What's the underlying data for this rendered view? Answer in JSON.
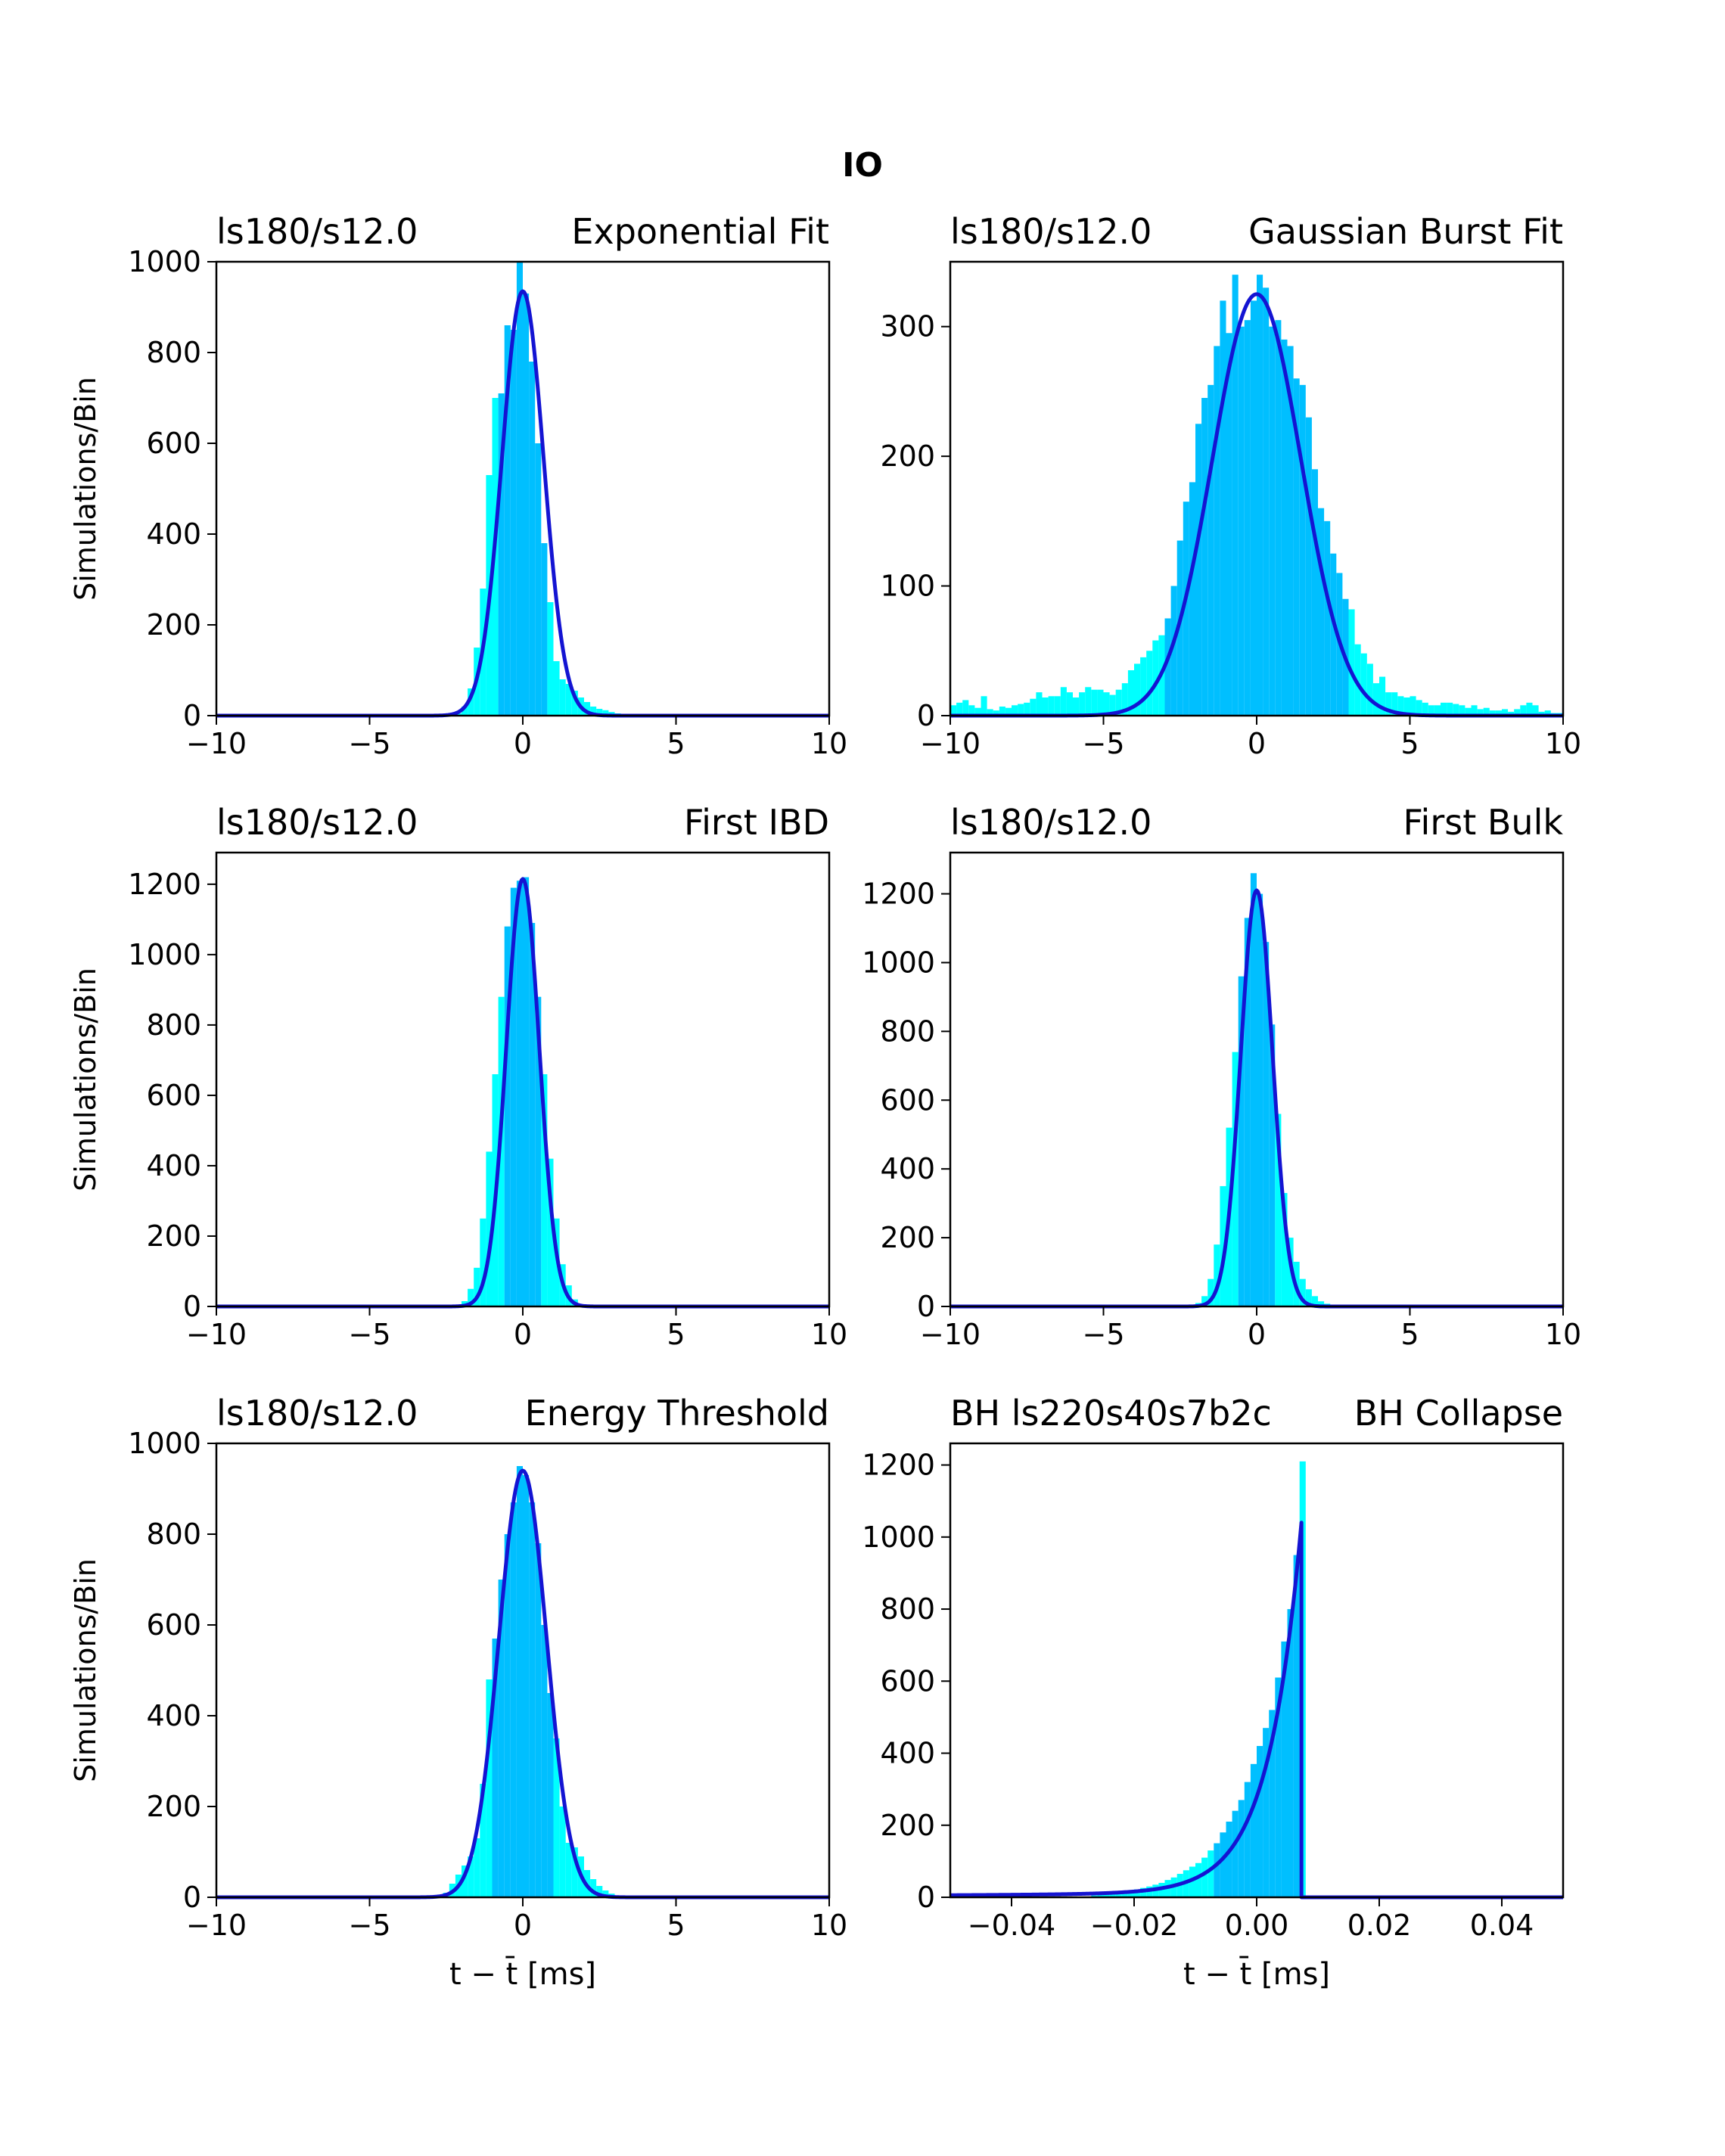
{
  "figure_title": "IO",
  "xlabel_text": "t − t̄ [ms]",
  "ylabel_text": "Simulations/Bin",
  "colors": {
    "hist_outer": "#00ffff",
    "hist_inner": "#00bfff",
    "fit_line": "#1414d2"
  },
  "chart_data": [
    {
      "type": "bar",
      "title_left": "ls180/s12.0",
      "title_right": "Exponential Fit",
      "ylabel": "Simulations/Bin",
      "xlabel": "",
      "xlim": [
        -10,
        10
      ],
      "ylim": [
        0,
        1000
      ],
      "xticks": [
        -10,
        -5,
        0,
        5,
        10
      ],
      "xtick_labels": [
        "−10",
        "−5",
        "0",
        "5",
        "10"
      ],
      "yticks": [
        0,
        200,
        400,
        600,
        800,
        1000
      ],
      "inner_band": [
        -0.8,
        0.8
      ],
      "bins": {
        "x0": -10,
        "width": 0.2,
        "centers": [
          -2.1,
          -1.9,
          -1.7,
          -1.5,
          -1.3,
          -1.1,
          -0.9,
          -0.7,
          -0.5,
          -0.3,
          -0.1,
          0.1,
          0.3,
          0.5,
          0.7,
          0.9,
          1.1,
          1.3,
          1.5,
          1.7,
          1.9,
          2.1,
          2.3,
          2.5,
          2.7,
          2.9,
          3.1,
          3.3
        ],
        "counts": [
          5,
          20,
          60,
          150,
          280,
          530,
          700,
          710,
          860,
          850,
          1000,
          930,
          780,
          600,
          380,
          250,
          120,
          80,
          70,
          55,
          40,
          30,
          20,
          15,
          12,
          8,
          5,
          3
        ]
      },
      "fit": {
        "kind": "gauss",
        "a": 935,
        "mu": 0,
        "sigma": 0.68
      }
    },
    {
      "type": "bar",
      "title_left": "ls180/s12.0",
      "title_right": "Gaussian Burst Fit",
      "ylabel": "",
      "xlabel": "",
      "xlim": [
        -10,
        10
      ],
      "ylim": [
        0,
        350
      ],
      "xticks": [
        -10,
        -5,
        0,
        5,
        10
      ],
      "xtick_labels": [
        "−10",
        "−5",
        "0",
        "5",
        "10"
      ],
      "yticks": [
        0,
        100,
        200,
        300
      ],
      "inner_band": [
        -3,
        3
      ],
      "bins": {
        "x0": -10,
        "width": 0.2,
        "centers": [
          -9.9,
          -9.7,
          -9.5,
          -9.3,
          -9.1,
          -8.9,
          -8.7,
          -8.5,
          -8.3,
          -8.1,
          -7.9,
          -7.7,
          -7.5,
          -7.3,
          -7.1,
          -6.9,
          -6.7,
          -6.5,
          -6.3,
          -6.1,
          -5.9,
          -5.7,
          -5.5,
          -5.3,
          -5.1,
          -4.9,
          -4.7,
          -4.5,
          -4.3,
          -4.1,
          -3.9,
          -3.7,
          -3.5,
          -3.3,
          -3.1,
          -2.9,
          -2.7,
          -2.5,
          -2.3,
          -2.1,
          -1.9,
          -1.7,
          -1.5,
          -1.3,
          -1.1,
          -0.9,
          -0.7,
          -0.5,
          -0.3,
          -0.1,
          0.1,
          0.3,
          0.5,
          0.7,
          0.9,
          1.1,
          1.3,
          1.5,
          1.7,
          1.9,
          2.1,
          2.3,
          2.5,
          2.7,
          2.9,
          3.1,
          3.3,
          3.5,
          3.7,
          3.9,
          4.1,
          4.3,
          4.5,
          4.7,
          4.9,
          5.1,
          5.3,
          5.5,
          5.7,
          5.9,
          6.1,
          6.3,
          6.5,
          6.7,
          6.9,
          7.1,
          7.3,
          7.5,
          7.7,
          7.9,
          8.1,
          8.3,
          8.5,
          8.7,
          8.9,
          9.1,
          9.3,
          9.5,
          9.7,
          9.9
        ],
        "counts": [
          8,
          10,
          12,
          8,
          6,
          15,
          5,
          4,
          7,
          6,
          8,
          9,
          10,
          13,
          18,
          14,
          15,
          15,
          22,
          18,
          14,
          18,
          22,
          20,
          20,
          18,
          16,
          20,
          25,
          35,
          40,
          45,
          50,
          58,
          62,
          75,
          100,
          135,
          165,
          180,
          225,
          245,
          255,
          285,
          320,
          295,
          340,
          300,
          305,
          320,
          340,
          330,
          300,
          305,
          290,
          285,
          260,
          255,
          230,
          190,
          160,
          150,
          125,
          110,
          90,
          82,
          55,
          48,
          40,
          25,
          30,
          18,
          18,
          15,
          14,
          15,
          12,
          10,
          8,
          8,
          10,
          10,
          9,
          8,
          6,
          8,
          5,
          6,
          4,
          4,
          5,
          3,
          5,
          8,
          10,
          8,
          3,
          4,
          2,
          2
        ]
      },
      "fit": {
        "kind": "gauss",
        "a": 325,
        "mu": 0,
        "sigma": 1.45
      }
    },
    {
      "type": "bar",
      "title_left": "ls180/s12.0",
      "title_right": "First IBD",
      "ylabel": "Simulations/Bin",
      "xlabel": "",
      "xlim": [
        -10,
        10
      ],
      "ylim": [
        0,
        1290
      ],
      "xticks": [
        -10,
        -5,
        0,
        5,
        10
      ],
      "xtick_labels": [
        "−10",
        "−5",
        "0",
        "5",
        "10"
      ],
      "yticks": [
        0,
        200,
        400,
        600,
        800,
        1000,
        1200
      ],
      "inner_band": [
        -0.6,
        0.6
      ],
      "bins": {
        "x0": -10,
        "width": 0.2,
        "centers": [
          -1.9,
          -1.7,
          -1.5,
          -1.3,
          -1.1,
          -0.9,
          -0.7,
          -0.5,
          -0.3,
          -0.1,
          0.1,
          0.3,
          0.5,
          0.7,
          0.9,
          1.1,
          1.3,
          1.5,
          1.7
        ],
        "counts": [
          15,
          50,
          110,
          250,
          440,
          660,
          880,
          1080,
          1190,
          1210,
          1220,
          1090,
          880,
          660,
          420,
          250,
          120,
          60,
          20
        ]
      },
      "fit": {
        "kind": "gauss",
        "a": 1215,
        "mu": 0,
        "sigma": 0.54
      }
    },
    {
      "type": "bar",
      "title_left": "ls180/s12.0",
      "title_right": "First Bulk",
      "ylabel": "",
      "xlabel": "",
      "xlim": [
        -10,
        10
      ],
      "ylim": [
        0,
        1320
      ],
      "xticks": [
        -10,
        -5,
        0,
        5,
        10
      ],
      "xtick_labels": [
        "−10",
        "−5",
        "0",
        "5",
        "10"
      ],
      "yticks": [
        0,
        200,
        400,
        600,
        800,
        1000,
        1200
      ],
      "inner_band": [
        -0.6,
        0.6
      ],
      "bins": {
        "x0": -10,
        "width": 0.2,
        "centers": [
          -1.9,
          -1.7,
          -1.5,
          -1.3,
          -1.1,
          -0.9,
          -0.7,
          -0.5,
          -0.3,
          -0.1,
          0.1,
          0.3,
          0.5,
          0.7,
          0.9,
          1.1,
          1.3,
          1.5,
          1.7,
          1.9,
          2.1,
          2.3
        ],
        "counts": [
          10,
          30,
          80,
          180,
          350,
          520,
          740,
          960,
          1130,
          1260,
          1200,
          1060,
          820,
          560,
          330,
          200,
          130,
          80,
          50,
          30,
          15,
          8
        ]
      },
      "fit": {
        "kind": "gauss",
        "a": 1210,
        "mu": 0,
        "sigma": 0.52
      }
    },
    {
      "type": "bar",
      "title_left": "ls180/s12.0",
      "title_right": "Energy Threshold",
      "ylabel": "Simulations/Bin",
      "xlabel": "t − t̄ [ms]",
      "xlim": [
        -10,
        10
      ],
      "ylim": [
        0,
        1000
      ],
      "xticks": [
        -10,
        -5,
        0,
        5,
        10
      ],
      "xtick_labels": [
        "−10",
        "−5",
        "0",
        "5",
        "10"
      ],
      "yticks": [
        0,
        200,
        400,
        600,
        800,
        1000
      ],
      "inner_band": [
        -1,
        1
      ],
      "bins": {
        "x0": -10,
        "width": 0.2,
        "centers": [
          -2.5,
          -2.3,
          -2.1,
          -1.9,
          -1.7,
          -1.5,
          -1.3,
          -1.1,
          -0.9,
          -0.7,
          -0.5,
          -0.3,
          -0.1,
          0.1,
          0.3,
          0.5,
          0.7,
          0.9,
          1.1,
          1.3,
          1.5,
          1.7,
          1.9,
          2.1,
          2.3,
          2.5,
          2.7,
          2.9
        ],
        "counts": [
          10,
          30,
          50,
          70,
          90,
          130,
          250,
          480,
          570,
          700,
          800,
          870,
          950,
          930,
          870,
          780,
          600,
          450,
          350,
          200,
          120,
          110,
          90,
          60,
          40,
          25,
          15,
          8
        ]
      },
      "fit": {
        "kind": "gauss",
        "a": 940,
        "mu": 0,
        "sigma": 0.78
      }
    },
    {
      "type": "bar",
      "title_left": "BH ls220s40s7b2c",
      "title_right": "BH Collapse",
      "ylabel": "",
      "xlabel": "t − t̄ [ms]",
      "xlim": [
        -0.05,
        0.05
      ],
      "ylim": [
        0,
        1260
      ],
      "xticks": [
        -0.04,
        -0.02,
        0,
        0.02,
        0.04
      ],
      "xtick_labels": [
        "−0.04",
        "−0.02",
        "0.00",
        "0.02",
        "0.04"
      ],
      "yticks": [
        0,
        200,
        400,
        600,
        800,
        1000,
        1200
      ],
      "inner_band": [
        -0.007,
        0.007
      ],
      "bins": {
        "x0": -0.05,
        "width": 0.001,
        "centers": [
          -0.0265,
          -0.0255,
          -0.0245,
          -0.0235,
          -0.0225,
          -0.0215,
          -0.0205,
          -0.0195,
          -0.0185,
          -0.0175,
          -0.0165,
          -0.0155,
          -0.0145,
          -0.0135,
          -0.0125,
          -0.0115,
          -0.0105,
          -0.0095,
          -0.0085,
          -0.0075,
          -0.0065,
          -0.0055,
          -0.0045,
          -0.0035,
          -0.0025,
          -0.0015,
          -0.0005,
          0.0005,
          0.0015,
          0.0025,
          0.0035,
          0.0045,
          0.0055,
          0.0065,
          0.0075
        ],
        "counts": [
          5,
          8,
          10,
          12,
          14,
          18,
          20,
          22,
          26,
          30,
          35,
          40,
          48,
          55,
          65,
          75,
          85,
          95,
          110,
          130,
          150,
          180,
          210,
          240,
          270,
          320,
          370,
          420,
          470,
          520,
          610,
          710,
          800,
          950,
          1210
        ]
      },
      "fit": {
        "kind": "bh",
        "a": 1025,
        "cutoff": 0.0073,
        "tau": 0.0054
      }
    }
  ]
}
